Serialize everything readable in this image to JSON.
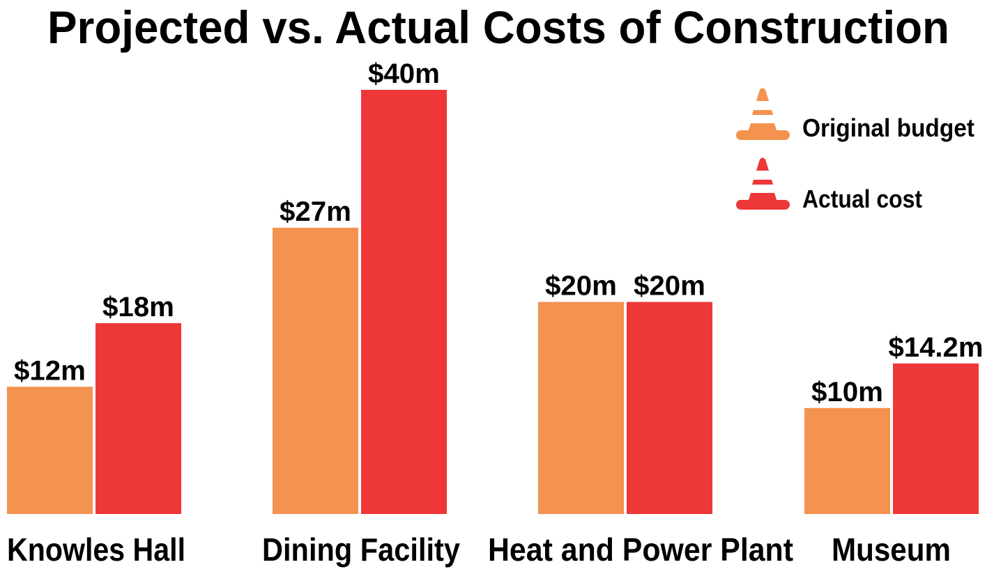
{
  "chart_data": {
    "type": "bar",
    "title": "Projected vs. Actual Costs of Construction",
    "xlabel": "",
    "ylabel": "",
    "ylim": [
      0,
      40
    ],
    "grid": false,
    "legend_placement": "top-right",
    "categories": [
      "Knowles Hall",
      "Dining Facility",
      "Heat and Power Plant",
      "Museum"
    ],
    "series": [
      {
        "name": "Original budget",
        "values": [
          12,
          27,
          20,
          10
        ],
        "value_labels": [
          "$12m",
          "$27m",
          "$20m",
          "$10m"
        ],
        "color": "#F4924F",
        "icon": "traffic-cone-icon"
      },
      {
        "name": "Actual cost",
        "values": [
          18,
          40,
          20,
          14.2
        ],
        "value_labels": [
          "$18m",
          "$40m",
          "$20m",
          "$14.2m"
        ],
        "color": "#EE3739",
        "icon": "traffic-cone-icon"
      }
    ]
  }
}
